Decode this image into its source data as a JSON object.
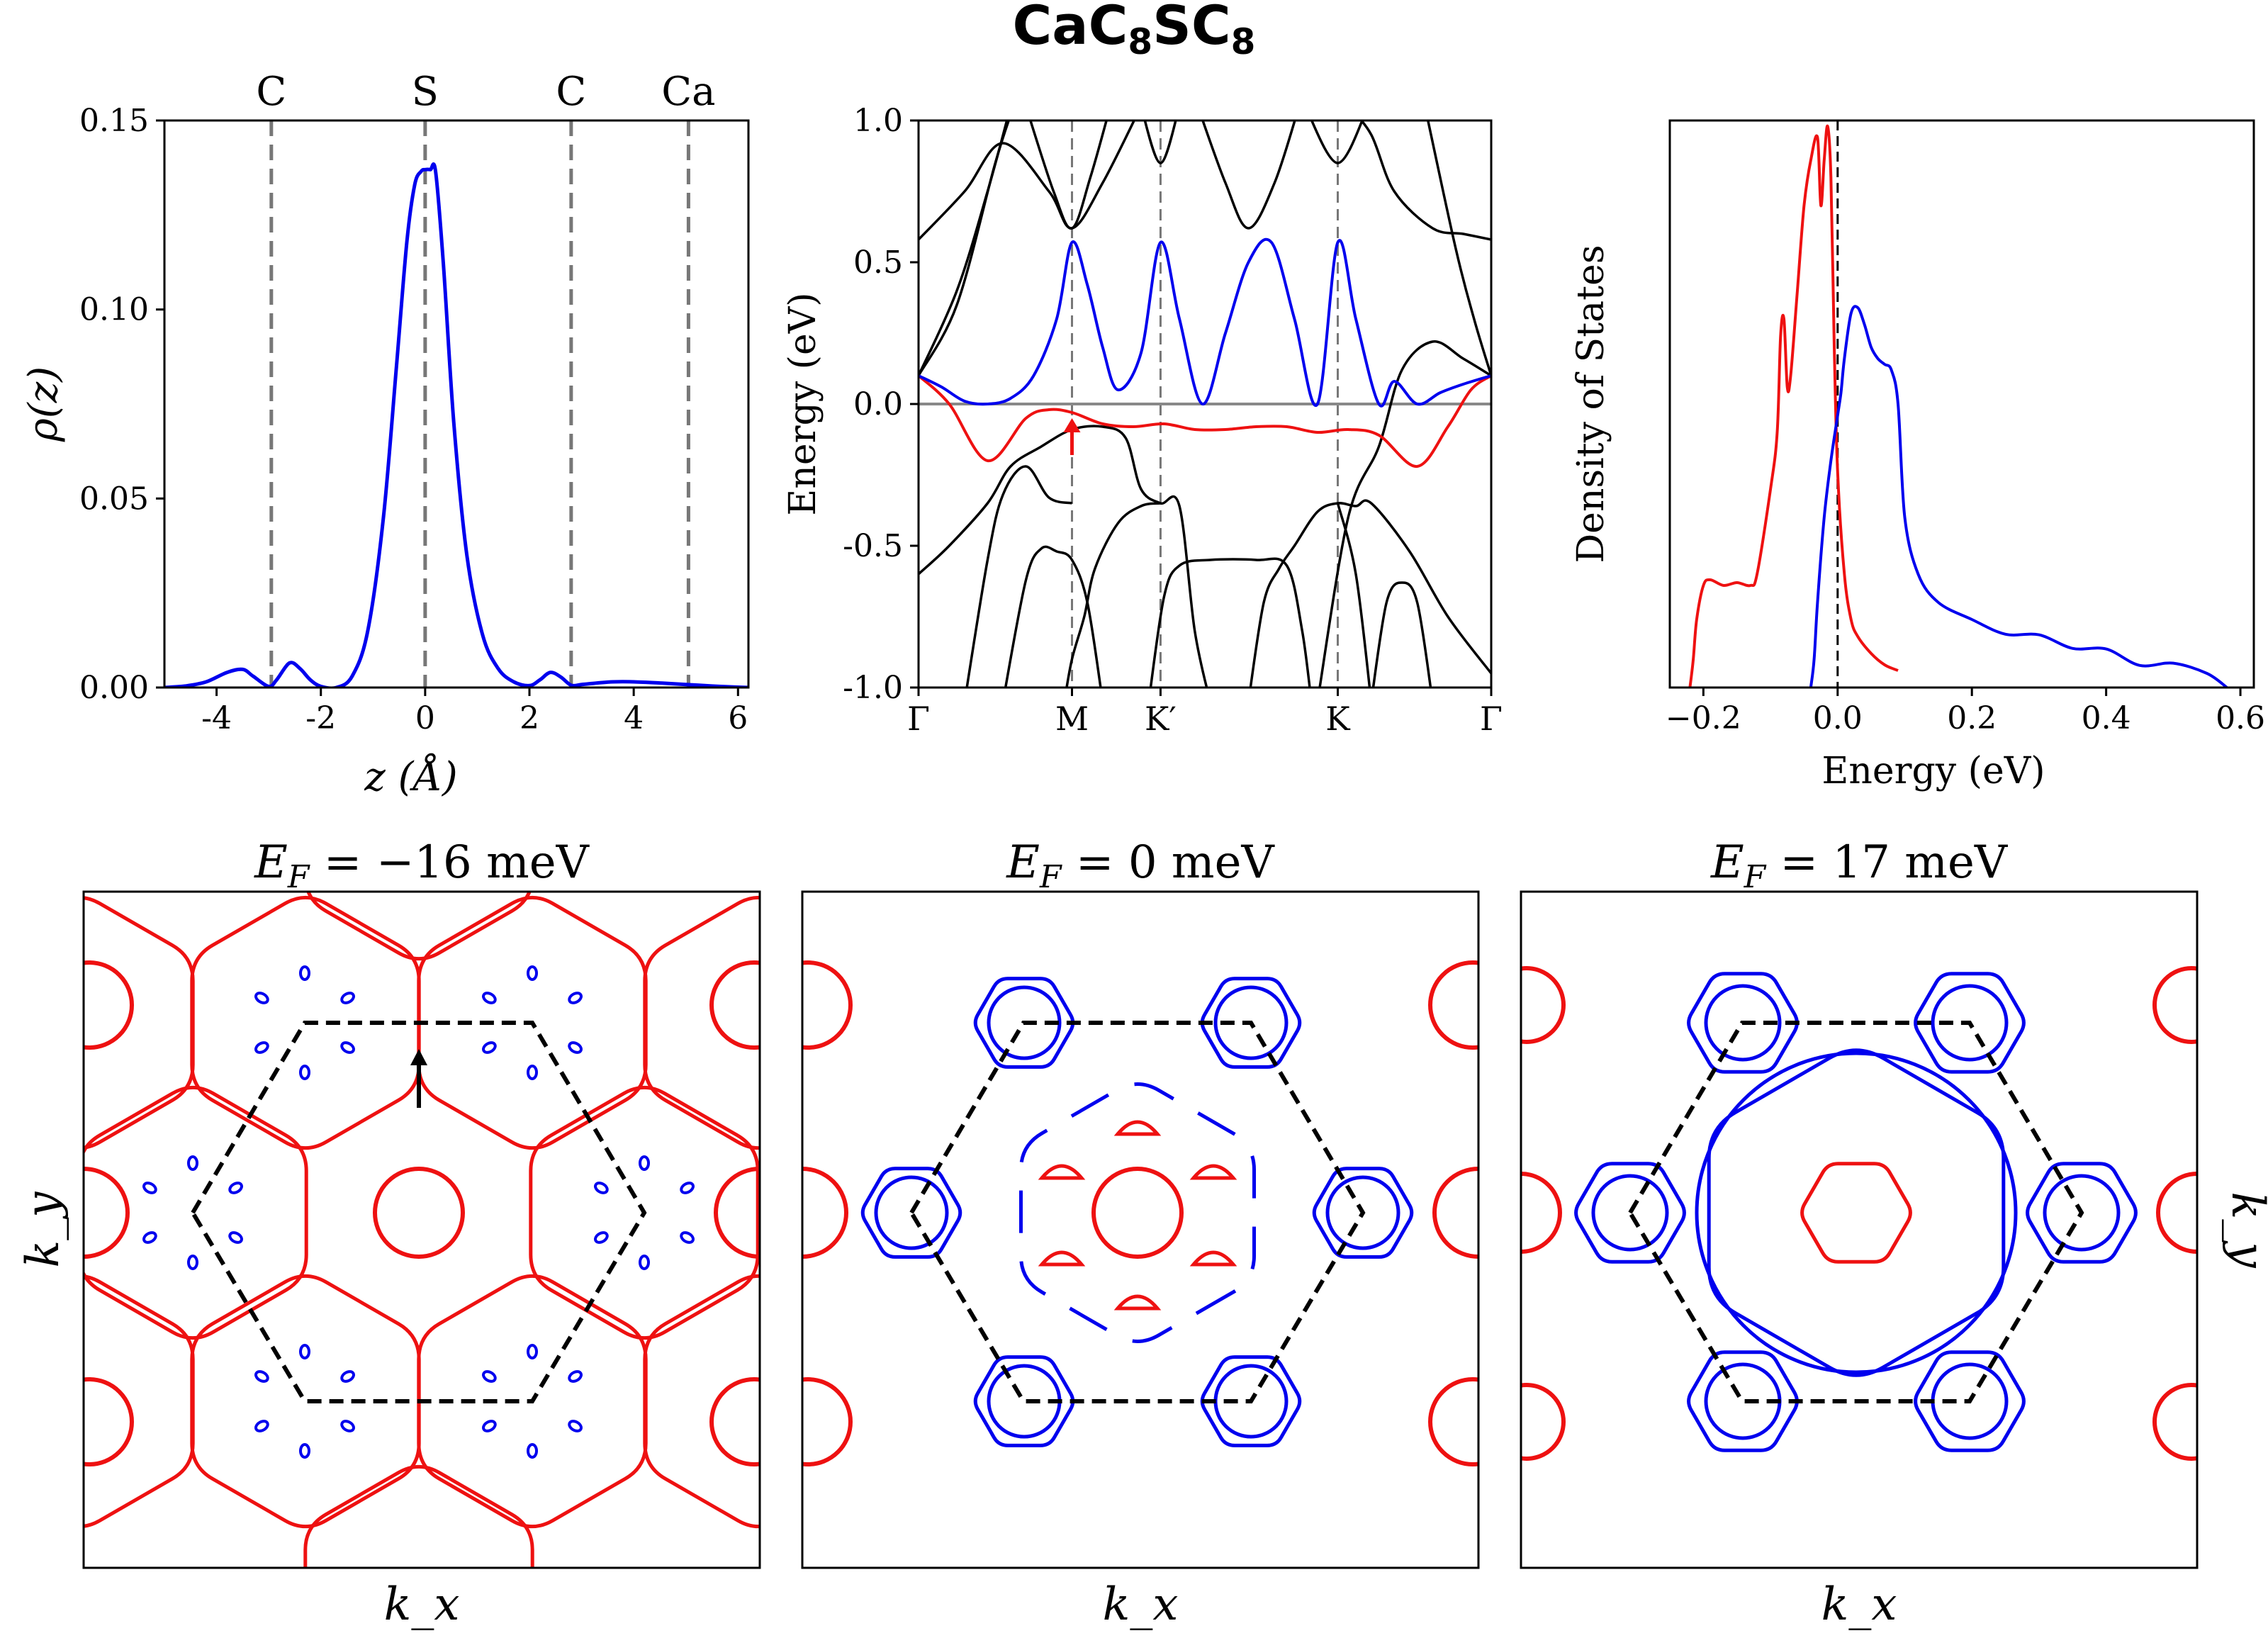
{
  "figure": {
    "title": "CaC₈SC₈",
    "title_parts": [
      "CaC",
      "8",
      "SC",
      "8"
    ]
  },
  "colors": {
    "blue": "#0000ee",
    "red": "#ee1111",
    "black": "#000000",
    "gray": "#777777"
  },
  "chart_data": [
    {
      "id": "density_profile",
      "type": "line",
      "xlabel": "z (Å)",
      "ylabel": "ρ(z)",
      "xlim": [
        -5,
        6.2
      ],
      "ylim": [
        0,
        0.15
      ],
      "xticks": [
        -4,
        -2,
        0,
        2,
        4,
        6
      ],
      "xtick_labels": [
        "-4",
        "-2",
        "0",
        "2",
        "4",
        "6"
      ],
      "yticks": [
        0,
        0.05,
        0.1,
        0.15
      ],
      "ytick_labels": [
        "0.00",
        "0.05",
        "0.10",
        "0.15"
      ],
      "atom_markers": [
        {
          "label": "C",
          "z": -2.95
        },
        {
          "label": "S",
          "z": 0.0
        },
        {
          "label": "C",
          "z": 2.8
        },
        {
          "label": "Ca",
          "z": 5.05
        }
      ],
      "series": [
        {
          "name": "rho",
          "color": "#0000ee",
          "x": [
            -5.0,
            -4.6,
            -4.2,
            -3.8,
            -3.5,
            -3.3,
            -3.0,
            -2.85,
            -2.6,
            -2.4,
            -2.2,
            -2.0,
            -1.7,
            -1.4,
            -1.1,
            -0.8,
            -0.55,
            -0.35,
            -0.2,
            -0.08,
            0.0,
            0.1,
            0.2,
            0.35,
            0.55,
            0.8,
            1.1,
            1.4,
            1.7,
            2.0,
            2.2,
            2.4,
            2.6,
            2.8,
            3.0,
            3.3,
            3.6,
            4.0,
            4.5,
            5.0,
            5.5,
            6.0,
            6.2
          ],
          "y": [
            0.0,
            0.0004,
            0.0015,
            0.004,
            0.0048,
            0.003,
            0.0003,
            0.002,
            0.0065,
            0.005,
            0.002,
            0.0003,
            0.0,
            0.003,
            0.015,
            0.045,
            0.085,
            0.118,
            0.133,
            0.1365,
            0.137,
            0.137,
            0.1365,
            0.112,
            0.07,
            0.035,
            0.014,
            0.005,
            0.0015,
            0.0005,
            0.002,
            0.004,
            0.0028,
            0.0006,
            0.0008,
            0.0012,
            0.0015,
            0.0015,
            0.0012,
            0.0008,
            0.0004,
            0.0001,
            0.0
          ]
        }
      ]
    },
    {
      "id": "band_structure",
      "type": "line",
      "ylabel": "Energy (eV)",
      "ylim": [
        -1.0,
        1.0
      ],
      "yticks": [
        -1.0,
        -0.5,
        0.0,
        0.5,
        1.0
      ],
      "ytick_labels": [
        "-1.0",
        "-0.5",
        "0.0",
        "0.5",
        "1.0"
      ],
      "kpoint_labels": [
        "Γ",
        "M",
        "K′",
        "K",
        "Γ"
      ],
      "kpoint_positions": [
        0,
        1,
        1.577,
        2.732,
        3.732
      ],
      "fermi_level": 0.0,
      "series": [
        {
          "name": "blue band",
          "color": "#0000ee",
          "x": [
            0,
            0.15,
            0.3,
            0.45,
            0.6,
            0.75,
            0.9,
            1.0,
            1.1,
            1.2,
            1.3,
            1.45,
            1.577,
            1.7,
            1.85,
            2.0,
            2.15,
            2.3,
            2.45,
            2.6,
            2.732,
            2.85,
            3.0,
            3.1,
            3.25,
            3.4,
            3.55,
            3.732
          ],
          "y": [
            0.1,
            0.06,
            0.01,
            0.0,
            0.02,
            0.1,
            0.3,
            0.57,
            0.42,
            0.2,
            0.05,
            0.18,
            0.57,
            0.3,
            0.0,
            0.25,
            0.5,
            0.57,
            0.3,
            0.0,
            0.57,
            0.3,
            0.0,
            0.08,
            0.0,
            0.04,
            0.07,
            0.1
          ]
        },
        {
          "name": "red band",
          "color": "#ee1111",
          "x": [
            0,
            0.2,
            0.45,
            0.7,
            0.85,
            1.0,
            1.2,
            1.4,
            1.6,
            1.8,
            2.0,
            2.2,
            2.4,
            2.6,
            2.8,
            3.0,
            3.25,
            3.45,
            3.6,
            3.732
          ],
          "y": [
            0.1,
            0.0,
            -0.2,
            -0.05,
            -0.02,
            -0.03,
            -0.07,
            -0.08,
            -0.07,
            -0.09,
            -0.09,
            -0.08,
            -0.08,
            -0.1,
            -0.09,
            -0.11,
            -0.22,
            -0.08,
            0.05,
            0.1
          ]
        },
        {
          "name": "black bands",
          "color": "#000000",
          "x": [],
          "y": []
        }
      ],
      "annotation": {
        "text": "arrow at M",
        "x": 1.0,
        "y": -0.1
      }
    },
    {
      "id": "density_of_states",
      "type": "line",
      "xlabel": "Energy (eV)",
      "ylabel": "Density of States",
      "xlim": [
        -0.25,
        0.62
      ],
      "xticks": [
        -0.2,
        0.0,
        0.2,
        0.4,
        0.6
      ],
      "xtick_labels": [
        "−0.2",
        "0.0",
        "0.2",
        "0.4",
        "0.6"
      ],
      "series": [
        {
          "name": "red",
          "color": "#ee1111",
          "x": [
            -0.22,
            -0.215,
            -0.21,
            -0.2,
            -0.19,
            -0.17,
            -0.15,
            -0.13,
            -0.12,
            -0.1,
            -0.09,
            -0.085,
            -0.08,
            -0.075,
            -0.07,
            -0.06,
            -0.05,
            -0.04,
            -0.03,
            -0.025,
            -0.02,
            -0.015,
            -0.01,
            -0.005,
            0.0,
            0.01,
            0.02,
            0.03,
            0.05,
            0.07,
            0.09
          ],
          "y": [
            0.0,
            0.05,
            0.12,
            0.18,
            0.19,
            0.18,
            0.185,
            0.18,
            0.2,
            0.35,
            0.45,
            0.62,
            0.65,
            0.53,
            0.55,
            0.7,
            0.85,
            0.93,
            0.97,
            0.85,
            0.93,
            0.99,
            0.9,
            0.6,
            0.38,
            0.2,
            0.12,
            0.09,
            0.06,
            0.04,
            0.03
          ]
        },
        {
          "name": "blue",
          "color": "#0000ee",
          "x": [
            -0.04,
            -0.035,
            -0.03,
            -0.02,
            -0.01,
            0.0,
            0.005,
            0.01,
            0.02,
            0.03,
            0.04,
            0.05,
            0.06,
            0.07,
            0.08,
            0.09,
            0.1,
            0.12,
            0.15,
            0.2,
            0.25,
            0.3,
            0.35,
            0.4,
            0.45,
            0.5,
            0.55,
            0.58
          ],
          "y": [
            0.0,
            0.05,
            0.15,
            0.3,
            0.4,
            0.48,
            0.52,
            0.58,
            0.66,
            0.67,
            0.64,
            0.6,
            0.58,
            0.57,
            0.56,
            0.5,
            0.3,
            0.2,
            0.15,
            0.12,
            0.1,
            0.085,
            0.075,
            0.06,
            0.045,
            0.035,
            0.025,
            0.0
          ]
        }
      ],
      "fermi_marker": 0.0
    },
    {
      "id": "fermi_surface_m16",
      "type": "scatter",
      "title": "E_F = −16 meV",
      "title_parts": [
        "E",
        "F",
        " = −16 meV"
      ],
      "xlabel": "k_x",
      "ylabel": "k_y",
      "series": [
        {
          "name": "red sheets",
          "color": "#ee1111"
        },
        {
          "name": "blue pockets",
          "color": "#0000ee"
        }
      ]
    },
    {
      "id": "fermi_surface_0",
      "type": "scatter",
      "title": "E_F = 0 meV",
      "title_parts": [
        "E",
        "F",
        " = 0 meV"
      ],
      "xlabel": "k_x",
      "series": [
        {
          "name": "red sheets",
          "color": "#ee1111"
        },
        {
          "name": "blue sheets",
          "color": "#0000ee"
        }
      ]
    },
    {
      "id": "fermi_surface_p17",
      "type": "scatter",
      "title": "E_F = 17 meV",
      "title_parts": [
        "E",
        "F",
        " = 17 meV"
      ],
      "xlabel": "k_x",
      "ylabel": "k_y",
      "series": [
        {
          "name": "red sheets",
          "color": "#ee1111"
        },
        {
          "name": "blue sheets",
          "color": "#0000ee"
        }
      ]
    }
  ]
}
